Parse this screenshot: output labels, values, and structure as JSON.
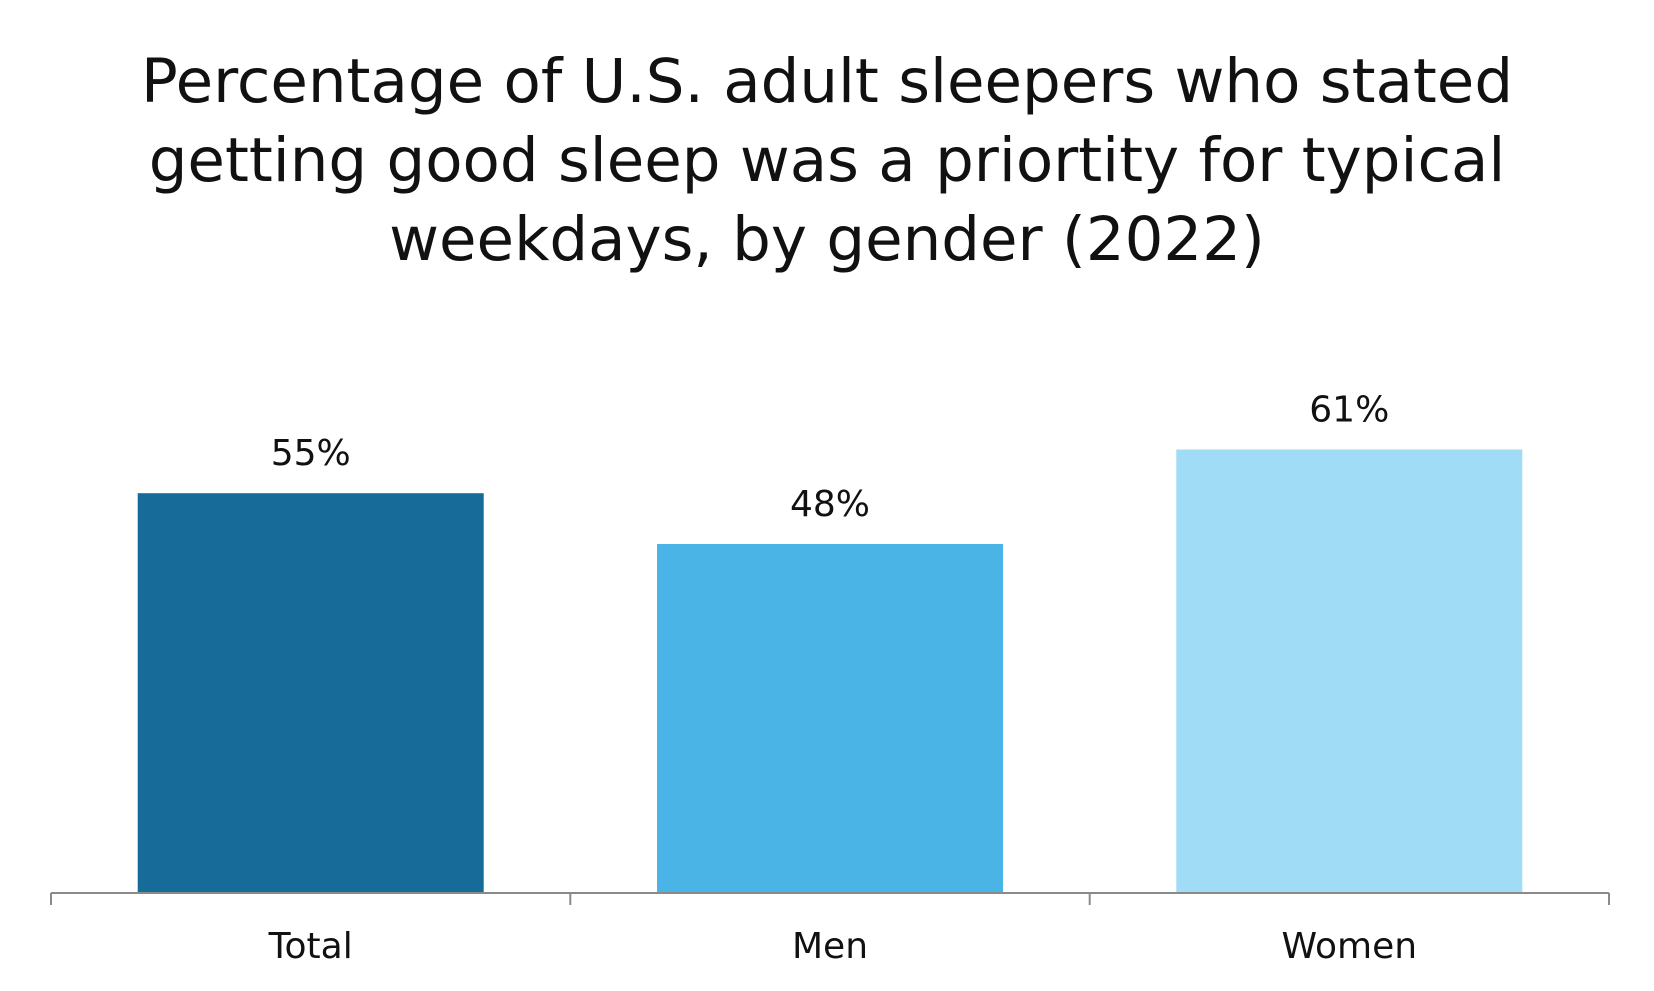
{
  "chart_data": {
    "type": "bar",
    "title_lines": [
      "Percentage of U.S. adult sleepers who stated",
      "getting good sleep was a priortity for typical",
      "weekdays, by gender (2022)"
    ],
    "title": "Percentage of U.S. adult sleepers who stated getting good sleep was a priortity for typical weekdays, by gender (2022)",
    "categories": [
      "Total",
      "Men",
      "Women"
    ],
    "values": [
      55,
      48,
      61
    ],
    "data_labels": [
      "55%",
      "48%",
      "61%"
    ],
    "bar_colors": [
      "#166b99",
      "#4ab4e6",
      "#a0dcf5"
    ],
    "ylim": [
      0,
      100
    ],
    "grid": false,
    "legend": "none",
    "xlabel": "",
    "ylabel": ""
  }
}
